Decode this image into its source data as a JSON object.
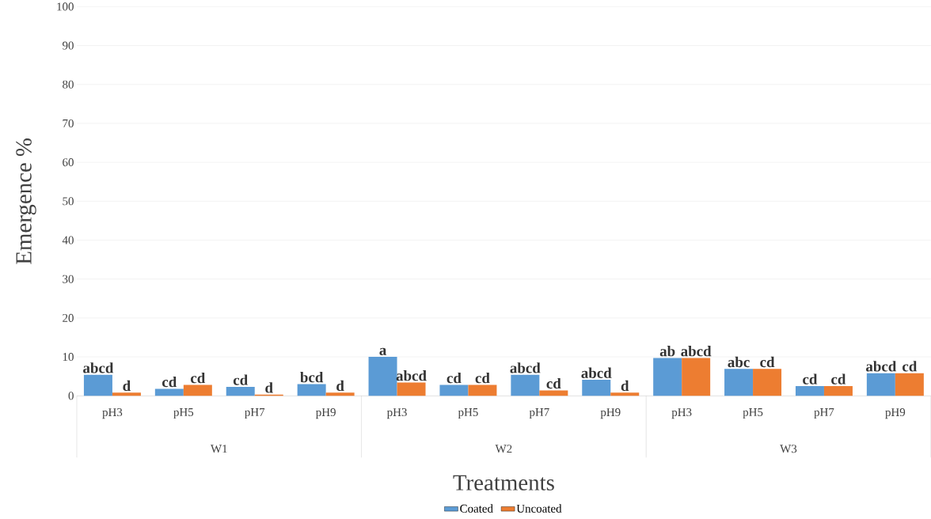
{
  "chart_data": {
    "type": "bar",
    "xlabel": "Treatments",
    "ylabel": "Emergence %",
    "categories": [
      "pH3",
      "pH5",
      "pH7",
      "pH9",
      "pH3",
      "pH5",
      "pH7",
      "pH9",
      "pH3",
      "pH5",
      "pH7",
      "pH9"
    ],
    "annotations": [
      "W1",
      "W2",
      "W3"
    ],
    "series": [
      {
        "name": "Coated",
        "color": "#5b9bd5",
        "values": [
          5.4,
          1.8,
          2.3,
          3.0,
          10.0,
          2.8,
          5.4,
          4.1,
          9.7,
          6.9,
          2.5,
          5.8
        ],
        "value_labels": [
          "abcd",
          "cd",
          "cd",
          "bcd",
          "a",
          "cd",
          "abcd",
          "abcd",
          "ab",
          "abc",
          "cd",
          "abcd"
        ]
      },
      {
        "name": "Uncoated",
        "color": "#ed7d31",
        "values": [
          0.8,
          2.8,
          0.3,
          0.8,
          3.4,
          2.8,
          1.4,
          0.8,
          9.7,
          6.9,
          2.5,
          5.8
        ],
        "value_labels": [
          "d",
          "cd",
          "d",
          "d",
          "abcd",
          "cd",
          "cd",
          "d",
          "abcd",
          "cd",
          "cd",
          "cd"
        ]
      }
    ],
    "ylim": [
      0,
      100
    ],
    "yticks": [
      0,
      10,
      20,
      30,
      40,
      50,
      60,
      70,
      80,
      90,
      100
    ],
    "grid": "y",
    "legend": "bottom"
  }
}
